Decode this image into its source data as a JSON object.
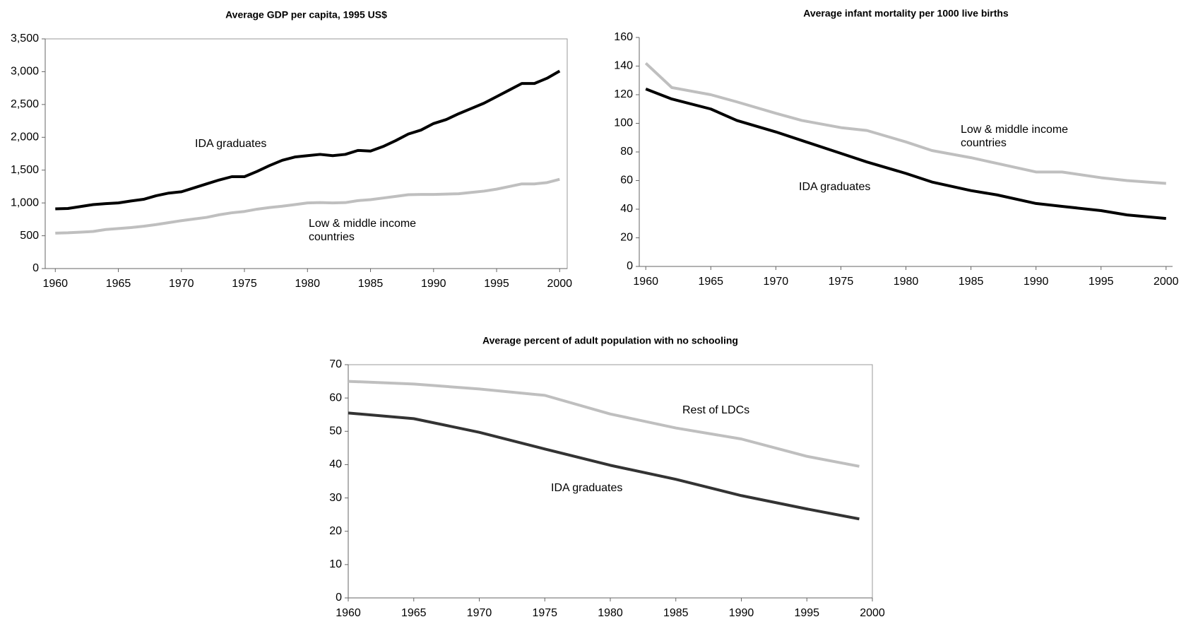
{
  "chart_data": [
    {
      "type": "line",
      "title": "Average GDP per capita, 1995 US$",
      "x": [
        1960,
        1961,
        1962,
        1963,
        1964,
        1965,
        1966,
        1967,
        1968,
        1969,
        1970,
        1971,
        1972,
        1973,
        1974,
        1975,
        1976,
        1977,
        1978,
        1979,
        1980,
        1981,
        1982,
        1983,
        1984,
        1985,
        1986,
        1987,
        1988,
        1989,
        1990,
        1991,
        1992,
        1993,
        1994,
        1995,
        1996,
        1997,
        1998,
        1999,
        2000
      ],
      "series": [
        {
          "name": "IDA graduates",
          "color": "#000000",
          "values": [
            910,
            915,
            945,
            975,
            990,
            1000,
            1030,
            1055,
            1110,
            1150,
            1170,
            1230,
            1290,
            1350,
            1400,
            1400,
            1480,
            1570,
            1650,
            1700,
            1720,
            1740,
            1720,
            1740,
            1800,
            1790,
            1860,
            1950,
            2050,
            2110,
            2210,
            2270,
            2360,
            2440,
            2520,
            2620,
            2720,
            2820,
            2820,
            2900,
            3010
          ]
        },
        {
          "name": "Low & middle income countries",
          "color": "#bfbfbf",
          "values": [
            540,
            545,
            555,
            565,
            595,
            610,
            625,
            645,
            670,
            700,
            730,
            755,
            780,
            820,
            850,
            870,
            905,
            930,
            950,
            975,
            1000,
            1005,
            1000,
            1005,
            1035,
            1050,
            1075,
            1100,
            1125,
            1130,
            1130,
            1135,
            1140,
            1160,
            1180,
            1210,
            1250,
            1290,
            1290,
            1310,
            1360
          ]
        }
      ],
      "xlim": [
        1959.2,
        2000.6
      ],
      "xticks": [
        1960,
        1965,
        1970,
        1975,
        1980,
        1985,
        1990,
        1995,
        2000
      ],
      "ylim": [
        0,
        3500
      ],
      "yticks": [
        0,
        500,
        {
          "value": 1000,
          "label": "1,000"
        },
        {
          "value": 1500,
          "label": "1,500"
        },
        {
          "value": 2000,
          "label": "2,000"
        },
        {
          "value": 2500,
          "label": "2,500"
        },
        {
          "value": 3000,
          "label": "3,000"
        },
        {
          "value": 3500,
          "label": "3,500"
        }
      ]
    },
    {
      "type": "line",
      "title": "Average infant mortality per 1000 live births",
      "x": [
        1960,
        1962,
        1965,
        1967,
        1970,
        1972,
        1975,
        1977,
        1980,
        1982,
        1985,
        1987,
        1990,
        1992,
        1995,
        1997,
        2000
      ],
      "series": [
        {
          "name": "Low & middle income countries",
          "color": "#bfbfbf",
          "values": [
            142,
            125,
            120,
            115,
            107,
            102,
            97,
            95,
            87,
            81,
            76,
            72,
            66,
            66,
            62,
            60,
            58
          ]
        },
        {
          "name": "IDA graduates",
          "color": "#000000",
          "values": [
            124,
            117,
            110,
            102,
            94,
            88,
            79,
            73,
            65,
            59,
            53,
            50,
            44,
            42,
            39,
            36,
            33.5
          ]
        }
      ],
      "xlim": [
        1959.5,
        2000.5
      ],
      "xticks": [
        1960,
        1965,
        1970,
        1975,
        1980,
        1985,
        1990,
        1995,
        2000
      ],
      "ylim": [
        0,
        160
      ],
      "yticks": [
        0,
        20,
        40,
        60,
        80,
        100,
        120,
        140,
        160
      ]
    },
    {
      "type": "line",
      "title": "Average percent of adult population with no schooling",
      "x": [
        1960,
        1965,
        1970,
        1975,
        1980,
        1985,
        1990,
        1995,
        1999
      ],
      "series": [
        {
          "name": "Rest of LDCs",
          "color": "#bfbfbf",
          "values": [
            65,
            64.2,
            62.7,
            60.8,
            55.2,
            51,
            47.7,
            42.5,
            39.5
          ]
        },
        {
          "name": "IDA graduates",
          "color": "#333333",
          "values": [
            55.5,
            53.8,
            49.7,
            44.7,
            39.8,
            35.6,
            30.7,
            26.7,
            23.7
          ]
        }
      ],
      "xlim": [
        1960,
        2000
      ],
      "xticks": [
        1960,
        1965,
        1970,
        1975,
        1980,
        1985,
        1990,
        1995,
        2000
      ],
      "ylim": [
        0,
        70
      ],
      "yticks": [
        0,
        10,
        20,
        30,
        40,
        50,
        60,
        70
      ]
    }
  ]
}
